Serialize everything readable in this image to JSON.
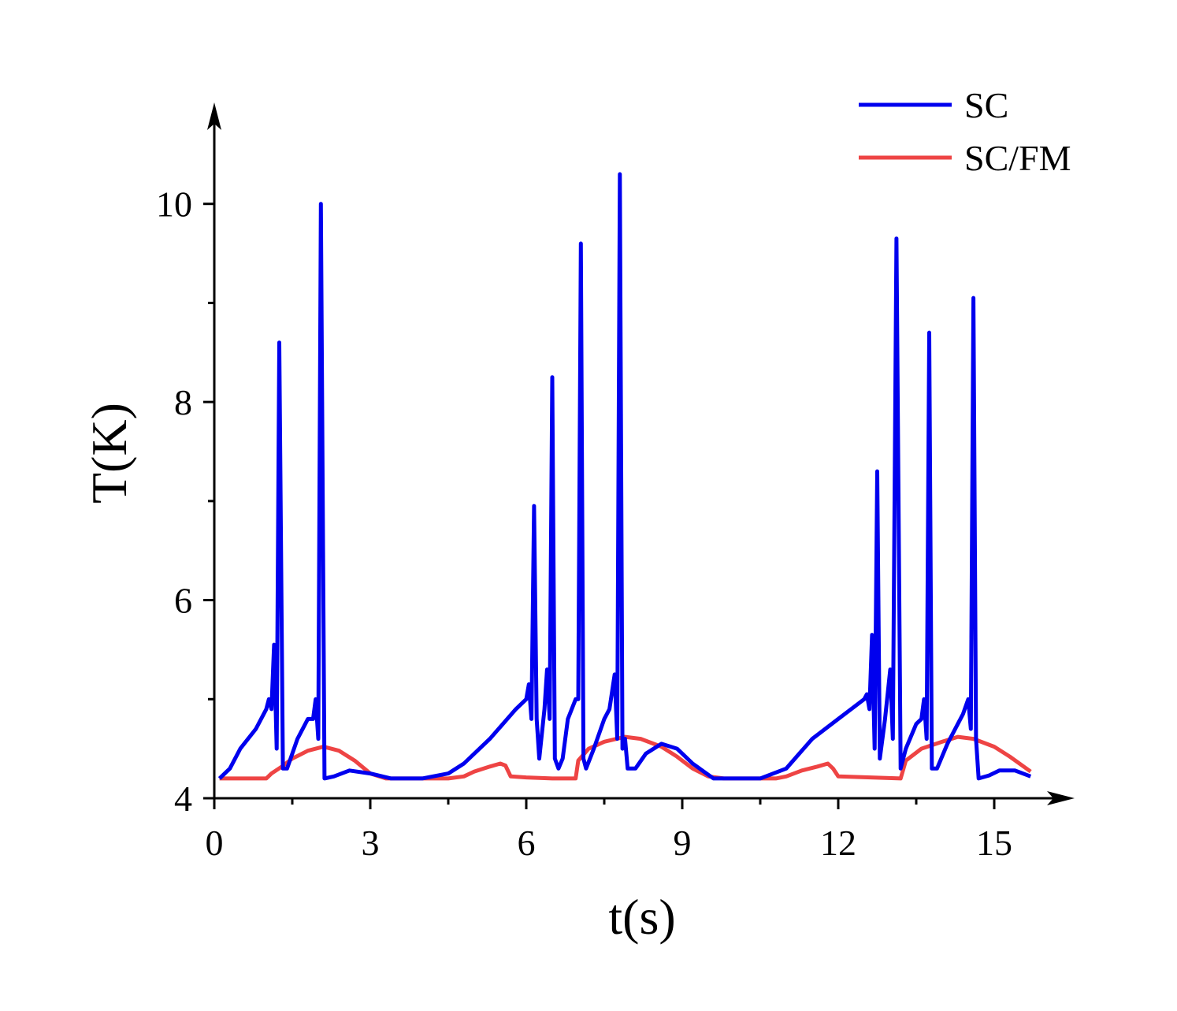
{
  "chart_data": {
    "type": "line",
    "x_label": "t(s)",
    "y_label": "T(K)",
    "xlim": [
      0,
      16.5
    ],
    "ylim": [
      4,
      11
    ],
    "xticks": [
      0,
      3,
      6,
      9,
      12,
      15
    ],
    "yticks": [
      4,
      6,
      8,
      10
    ],
    "xminorticks": [
      1.5,
      4.5,
      7.5,
      10.5,
      13.5
    ],
    "yminorticks": [
      5,
      7,
      9
    ],
    "legend": "top-right",
    "series": [
      {
        "name": "SC",
        "color": "#0000ee",
        "x": [
          0.1,
          0.3,
          0.5,
          0.8,
          1.0,
          1.05,
          1.1,
          1.15,
          1.2,
          1.25,
          1.32,
          1.4,
          1.6,
          1.8,
          1.9,
          1.95,
          2.0,
          2.05,
          2.12,
          2.3,
          2.6,
          3.0,
          3.4,
          4.0,
          4.5,
          4.8,
          5.3,
          5.8,
          6.0,
          6.05,
          6.1,
          6.15,
          6.2,
          6.25,
          6.35,
          6.4,
          6.45,
          6.5,
          6.55,
          6.62,
          6.7,
          6.8,
          6.95,
          7.0,
          7.05,
          7.1,
          7.15,
          7.3,
          7.5,
          7.6,
          7.7,
          7.75,
          7.8,
          7.85,
          7.9,
          7.95,
          8.1,
          8.3,
          8.6,
          8.9,
          9.2,
          9.6,
          10.5,
          11.0,
          11.5,
          12.0,
          12.5,
          12.55,
          12.6,
          12.65,
          12.7,
          12.75,
          12.8,
          12.9,
          13.0,
          13.05,
          13.12,
          13.2,
          13.3,
          13.5,
          13.6,
          13.65,
          13.7,
          13.75,
          13.8,
          13.9,
          14.1,
          14.3,
          14.4,
          14.5,
          14.55,
          14.6,
          14.65,
          14.7,
          14.9,
          15.1,
          15.4,
          15.7
        ],
        "values": [
          4.2,
          4.3,
          4.5,
          4.7,
          4.9,
          5.0,
          4.9,
          5.55,
          4.5,
          8.6,
          4.3,
          4.3,
          4.6,
          4.8,
          4.8,
          5.0,
          4.6,
          10.0,
          4.2,
          4.22,
          4.28,
          4.25,
          4.2,
          4.2,
          4.25,
          4.35,
          4.6,
          4.9,
          5.0,
          5.15,
          4.8,
          6.95,
          4.8,
          4.4,
          4.9,
          5.3,
          4.8,
          8.25,
          4.4,
          4.3,
          4.4,
          4.8,
          5.0,
          5.0,
          9.6,
          4.4,
          4.3,
          4.5,
          4.8,
          4.9,
          5.25,
          4.6,
          10.3,
          4.5,
          4.6,
          4.3,
          4.3,
          4.45,
          4.55,
          4.5,
          4.35,
          4.2,
          4.2,
          4.3,
          4.6,
          4.8,
          5.0,
          5.05,
          4.9,
          5.65,
          4.5,
          7.3,
          4.4,
          4.8,
          5.3,
          4.6,
          9.65,
          4.3,
          4.5,
          4.75,
          4.8,
          5.0,
          4.6,
          8.7,
          4.3,
          4.3,
          4.55,
          4.75,
          4.85,
          5.0,
          4.7,
          9.05,
          4.6,
          4.2,
          4.23,
          4.28,
          4.28,
          4.22
        ]
      },
      {
        "name": "SC/FM",
        "color": "#ee4444",
        "x": [
          0.1,
          1.0,
          1.1,
          1.3,
          1.5,
          1.8,
          2.1,
          2.4,
          2.7,
          3.0,
          3.3,
          4.5,
          4.8,
          5.0,
          5.3,
          5.5,
          5.6,
          5.7,
          6.0,
          6.5,
          6.95,
          7.0,
          7.2,
          7.5,
          7.9,
          8.2,
          8.6,
          8.9,
          9.2,
          9.5,
          9.8,
          10.8,
          11.0,
          11.3,
          11.6,
          11.8,
          11.9,
          12.0,
          13.2,
          13.3,
          13.6,
          14.0,
          14.3,
          14.6,
          15.0,
          15.3,
          15.7
        ],
        "values": [
          4.2,
          4.2,
          4.25,
          4.32,
          4.4,
          4.48,
          4.52,
          4.48,
          4.38,
          4.25,
          4.2,
          4.2,
          4.22,
          4.27,
          4.32,
          4.35,
          4.33,
          4.22,
          4.21,
          4.2,
          4.2,
          4.38,
          4.5,
          4.57,
          4.62,
          4.6,
          4.52,
          4.42,
          4.3,
          4.22,
          4.2,
          4.2,
          4.22,
          4.28,
          4.32,
          4.35,
          4.3,
          4.22,
          4.2,
          4.38,
          4.5,
          4.57,
          4.62,
          4.6,
          4.52,
          4.42,
          4.27
        ]
      }
    ]
  }
}
